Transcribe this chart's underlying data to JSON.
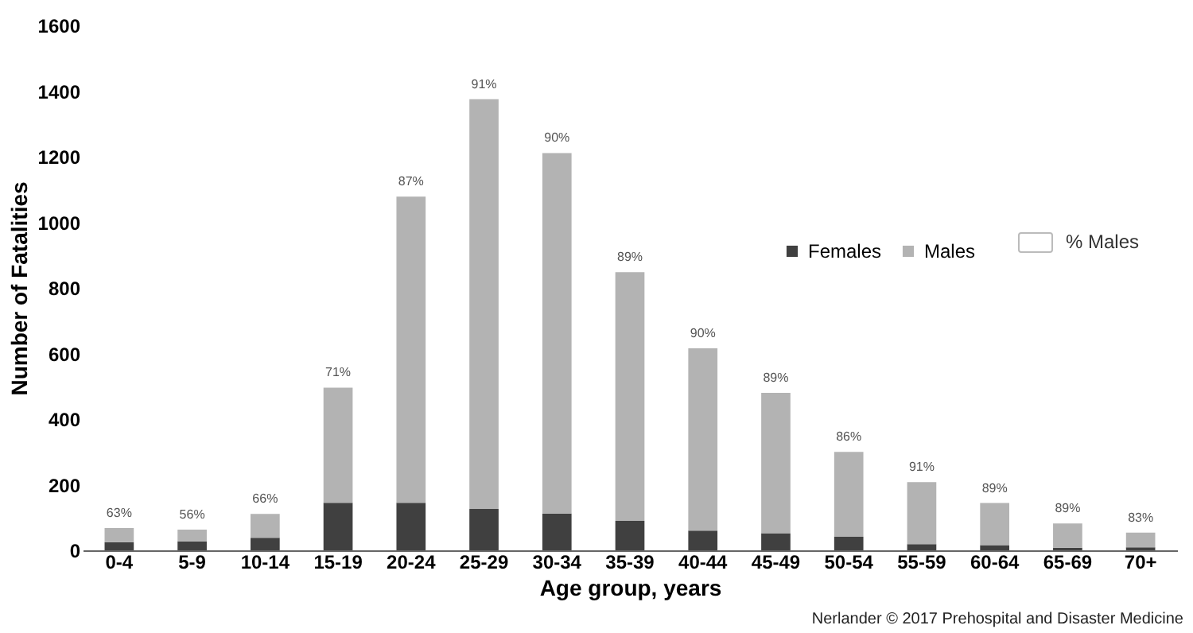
{
  "chart_data": {
    "type": "bar",
    "stacked": true,
    "xlabel": "Age group, years",
    "ylabel": "Number of Fatalities",
    "categories": [
      "0-4",
      "5-9",
      "10-14",
      "15-19",
      "20-24",
      "25-29",
      "30-34",
      "35-39",
      "40-44",
      "45-49",
      "50-54",
      "55-59",
      "60-64",
      "65-69",
      "70+"
    ],
    "series": [
      {
        "name": "Females",
        "color": "#404040",
        "values": [
          25,
          27,
          38,
          145,
          145,
          126,
          112,
          90,
          60,
          52,
          41,
          19,
          16,
          8,
          9
        ]
      },
      {
        "name": "Males",
        "color": "#b3b3b3",
        "values": [
          43,
          36,
          73,
          351,
          933,
          1249,
          1099,
          758,
          556,
          428,
          259,
          189,
          128,
          74,
          45
        ]
      }
    ],
    "ylim": [
      0,
      1600
    ],
    "yticks": [
      0,
      200,
      400,
      600,
      800,
      1000,
      1200,
      1400,
      1600
    ],
    "grid": false,
    "legend": "right",
    "annotations": [
      "% Males",
      {
        "text": "63%",
        "x": "0-4",
        "y": 68
      },
      {
        "text": "56%",
        "x": "5-9",
        "y": 63
      },
      {
        "text": "66%",
        "x": "10-14",
        "y": 111
      },
      {
        "text": "71%",
        "x": "15-19",
        "y": 496
      },
      {
        "text": "87%",
        "x": "20-24",
        "y": 1078
      },
      {
        "text": "91%",
        "x": "25-29",
        "y": 1375
      },
      {
        "text": "90%",
        "x": "30-34",
        "y": 1211
      },
      {
        "text": "89%",
        "x": "35-39",
        "y": 848
      },
      {
        "text": "90%",
        "x": "40-44",
        "y": 616
      },
      {
        "text": "89%",
        "x": "45-49",
        "y": 480
      },
      {
        "text": "86%",
        "x": "50-54",
        "y": 300
      },
      {
        "text": "91%",
        "x": "55-59",
        "y": 208
      },
      {
        "text": "89%",
        "x": "60-64",
        "y": 144
      },
      {
        "text": "89%",
        "x": "65-69",
        "y": 82
      },
      {
        "text": "83%",
        "x": "70+",
        "y": 54
      },
      "Nerlander © 2017 Prehospital and Disaster Medicine"
    ]
  }
}
